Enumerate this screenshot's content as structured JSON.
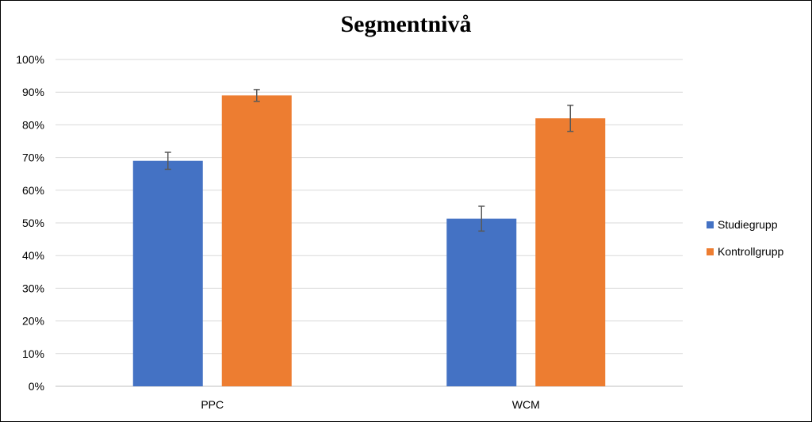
{
  "chart_data": {
    "type": "bar",
    "title": "Segmentnivå",
    "categories": [
      "PPC",
      "WCM"
    ],
    "series": [
      {
        "name": "Studiegrupp",
        "values": [
          69,
          51.3
        ],
        "error": [
          2.6,
          3.8
        ],
        "color": "#4472C4"
      },
      {
        "name": "Kontrollgrupp",
        "values": [
          89,
          82
        ],
        "error": [
          1.8,
          4.0
        ],
        "color": "#ED7D31"
      }
    ],
    "ylim": [
      0,
      100
    ],
    "yticks": [
      "0%",
      "10%",
      "20%",
      "30%",
      "40%",
      "50%",
      "60%",
      "70%",
      "80%",
      "90%",
      "100%"
    ],
    "grid": true,
    "legend_position": "right",
    "xlabel": "",
    "ylabel": ""
  }
}
